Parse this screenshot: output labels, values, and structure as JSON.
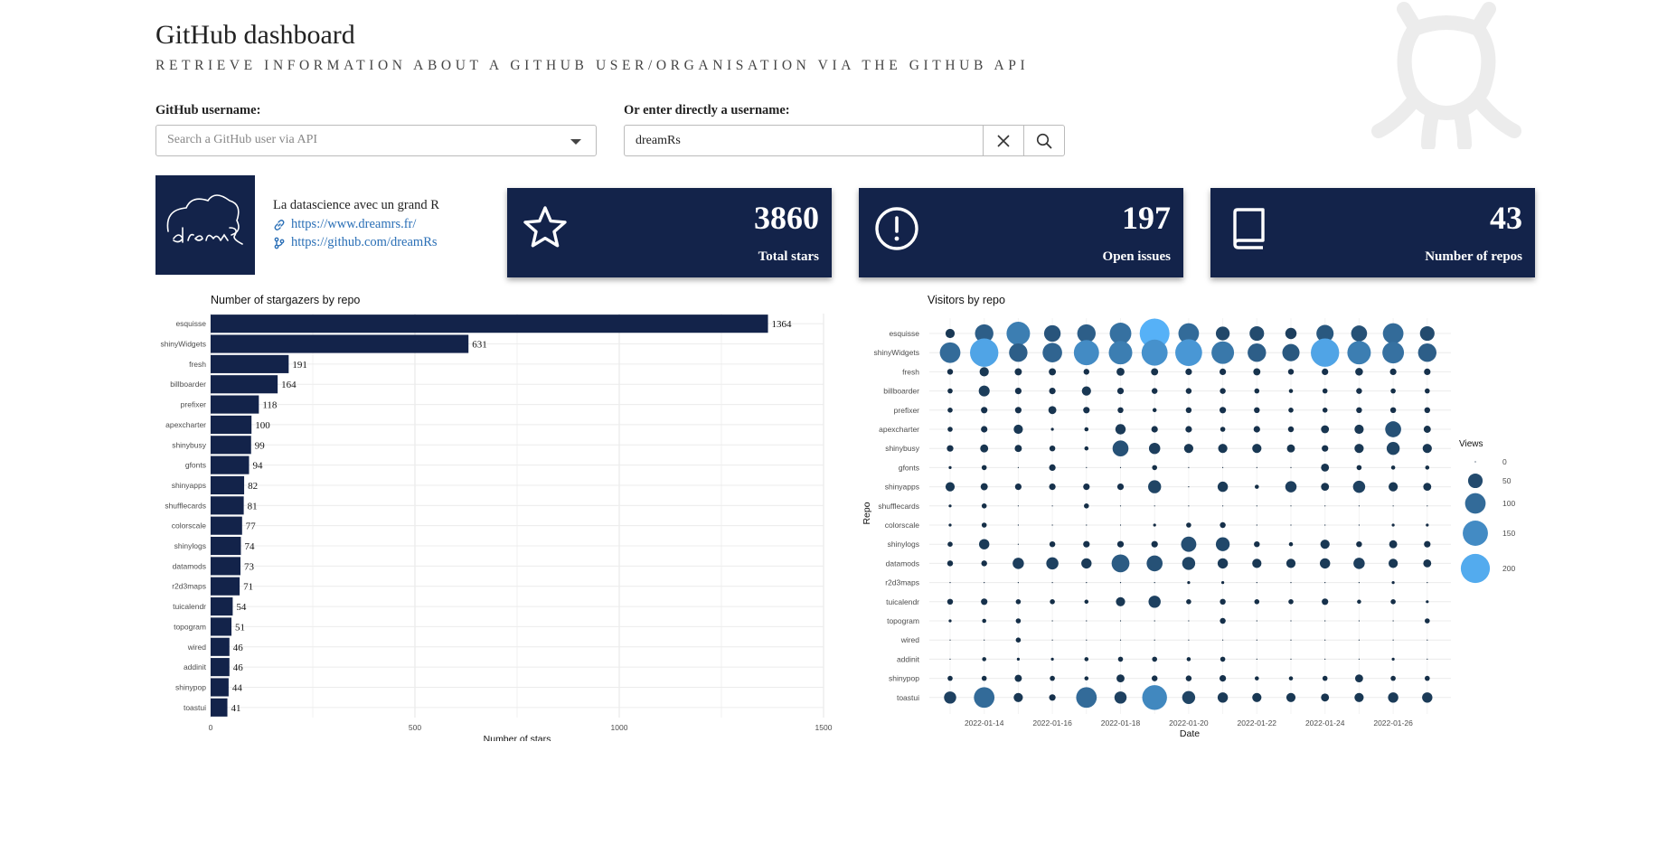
{
  "header": {
    "title": "GitHub dashboard",
    "subtitle": "RETRIEVE INFORMATION ABOUT A GITHUB USER/ORGANISATION VIA THE GITHUB API"
  },
  "search": {
    "username_label": "GitHub username:",
    "username_placeholder": "Search a GitHub user via API",
    "direct_label": "Or enter directly a username:",
    "direct_value": "dreamRs"
  },
  "profile": {
    "description": "La datascience avec un grand R",
    "website": "https://www.dreamrs.fr/",
    "github": "https://github.com/dreamRs",
    "avatar_text": "dreamRs"
  },
  "cards": {
    "stars": {
      "value": "3860",
      "label": "Total stars",
      "icon": "star-icon"
    },
    "issues": {
      "value": "197",
      "label": "Open issues",
      "icon": "alert-circle-icon"
    },
    "repos": {
      "value": "43",
      "label": "Number of repos",
      "icon": "book-icon"
    }
  },
  "colors": {
    "navy": "#13234a",
    "link": "#2a6fb6",
    "bubble_low": "#132b43",
    "bubble_high": "#56b1f7"
  },
  "chart_data": [
    {
      "type": "bar",
      "orientation": "horizontal",
      "title": "Number of stargazers by repo",
      "xlabel": "Number of stars",
      "ylabel": "",
      "xlim": [
        0,
        1500
      ],
      "xticks": [
        0,
        500,
        1000,
        1500
      ],
      "xtick_labels": [
        "0",
        "500",
        "1000",
        "1500"
      ],
      "categories": [
        "esquisse",
        "shinyWidgets",
        "fresh",
        "billboarder",
        "prefixer",
        "apexcharter",
        "shinybusy",
        "gfonts",
        "shinyapps",
        "shufflecards",
        "colorscale",
        "shinylogs",
        "datamods",
        "r2d3maps",
        "tuicalendr",
        "topogram",
        "wired",
        "addinit",
        "shinypop",
        "toastui"
      ],
      "values": [
        1364,
        631,
        191,
        164,
        118,
        100,
        99,
        94,
        82,
        81,
        77,
        74,
        73,
        71,
        54,
        51,
        46,
        46,
        44,
        41
      ]
    },
    {
      "type": "scatter",
      "subtype": "bubble",
      "title": "Visitors by repo",
      "xlabel": "Date",
      "ylabel": "Repo",
      "dates": [
        "2022-01-13",
        "2022-01-14",
        "2022-01-15",
        "2022-01-16",
        "2022-01-17",
        "2022-01-18",
        "2022-01-19",
        "2022-01-20",
        "2022-01-21",
        "2022-01-22",
        "2022-01-23",
        "2022-01-24",
        "2022-01-25",
        "2022-01-26",
        "2022-01-27"
      ],
      "xtick_labels": [
        "2022-01-14",
        "2022-01-16",
        "2022-01-18",
        "2022-01-20",
        "2022-01-22",
        "2022-01-24",
        "2022-01-26"
      ],
      "repos": [
        "esquisse",
        "shinyWidgets",
        "fresh",
        "billboarder",
        "prefixer",
        "apexcharter",
        "shinybusy",
        "gfonts",
        "shinyapps",
        "shufflecards",
        "colorscale",
        "shinylogs",
        "datamods",
        "r2d3maps",
        "tuicalendr",
        "topogram",
        "wired",
        "addinit",
        "shinypop",
        "toastui"
      ],
      "views": [
        [
          20,
          80,
          130,
          65,
          80,
          110,
          210,
          100,
          45,
          50,
          30,
          70,
          60,
          100,
          50
        ],
        [
          100,
          190,
          80,
          90,
          150,
          130,
          160,
          170,
          120,
          80,
          70,
          190,
          130,
          110,
          80
        ],
        [
          8,
          20,
          12,
          12,
          8,
          15,
          12,
          10,
          10,
          12,
          8,
          10,
          14,
          10,
          10
        ],
        [
          6,
          28,
          10,
          10,
          20,
          10,
          8,
          8,
          8,
          6,
          4,
          6,
          8,
          6,
          6
        ],
        [
          6,
          10,
          10,
          15,
          10,
          8,
          4,
          8,
          10,
          8,
          6,
          6,
          8,
          8,
          8
        ],
        [
          6,
          10,
          20,
          2,
          4,
          25,
          10,
          10,
          6,
          10,
          8,
          15,
          20,
          60,
          12
        ],
        [
          10,
          15,
          12,
          8,
          4,
          60,
          30,
          20,
          20,
          20,
          15,
          10,
          20,
          40,
          20
        ],
        [
          2,
          6,
          0,
          10,
          0,
          0,
          6,
          0,
          0,
          0,
          0,
          15,
          6,
          4,
          4
        ],
        [
          20,
          12,
          10,
          10,
          10,
          10,
          40,
          0,
          25,
          4,
          30,
          15,
          35,
          20,
          15
        ],
        [
          2,
          6,
          0,
          0,
          6,
          0,
          0,
          0,
          0,
          0,
          0,
          0,
          0,
          0,
          0
        ],
        [
          2,
          6,
          0,
          0,
          0,
          0,
          2,
          6,
          8,
          0,
          0,
          0,
          0,
          2,
          2
        ],
        [
          6,
          25,
          0,
          8,
          10,
          10,
          10,
          55,
          45,
          8,
          4,
          20,
          8,
          15,
          10
        ],
        [
          8,
          8,
          30,
          35,
          25,
          75,
          60,
          40,
          25,
          20,
          20,
          25,
          30,
          20,
          15
        ],
        [
          0,
          0,
          0,
          0,
          0,
          0,
          0,
          2,
          2,
          0,
          0,
          0,
          0,
          2,
          0
        ],
        [
          8,
          10,
          6,
          6,
          4,
          20,
          35,
          6,
          8,
          6,
          6,
          10,
          4,
          6,
          2
        ],
        [
          2,
          4,
          6,
          0,
          0,
          0,
          0,
          0,
          8,
          0,
          0,
          0,
          0,
          0,
          6
        ],
        [
          0,
          0,
          6,
          0,
          0,
          0,
          0,
          0,
          0,
          0,
          0,
          0,
          0,
          0,
          0
        ],
        [
          0,
          4,
          2,
          2,
          4,
          6,
          6,
          4,
          6,
          0,
          0,
          0,
          0,
          2,
          0
        ],
        [
          6,
          6,
          12,
          6,
          4,
          15,
          8,
          8,
          10,
          4,
          4,
          6,
          15,
          6,
          6
        ],
        [
          35,
          100,
          20,
          10,
          100,
          35,
          145,
          40,
          25,
          20,
          20,
          15,
          20,
          25,
          25
        ]
      ],
      "legend": {
        "title": "Views",
        "values": [
          0,
          50,
          100,
          150,
          200
        ],
        "labels": [
          "0",
          "50",
          "100",
          "150",
          "200"
        ],
        "position": "right"
      }
    }
  ]
}
